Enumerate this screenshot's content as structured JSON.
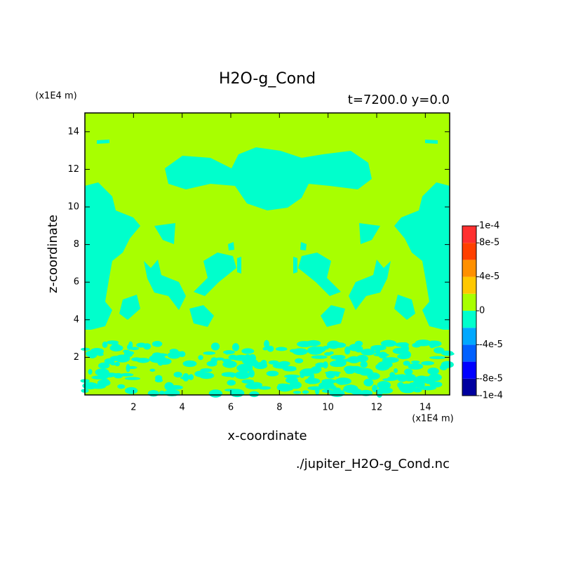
{
  "chart_data": {
    "type": "contour",
    "title": "H2O-g_Cond",
    "subtitle": "t=7200.0 y=0.0",
    "x_label": "x-coordinate",
    "y_label": "z-coordinate",
    "x_unit": "(x1E4 m)",
    "y_unit": "(x1E4 m)",
    "file_label": "./jupiter_H2O-g_Cond.nc",
    "xlim": [
      0,
      15
    ],
    "ylim": [
      0,
      15
    ],
    "xticks": [
      2,
      4,
      6,
      8,
      10,
      12,
      14
    ],
    "yticks": [
      2,
      4,
      6,
      8,
      10,
      12,
      14
    ],
    "colorbar": {
      "levels": [
        -0.0001,
        -8e-05,
        -6e-05,
        -4e-05,
        -2e-05,
        0,
        2e-05,
        4e-05,
        6e-05,
        8e-05,
        0.0001
      ],
      "colors": [
        "#0000a0",
        "#0000ff",
        "#0060ff",
        "#00a8ff",
        "#00ffcc",
        "#a8ff00",
        "#ffc800",
        "#ff9000",
        "#ff4000",
        "#ff3030"
      ],
      "ticks": [
        {
          "value": 0.0001,
          "label": "1e-4"
        },
        {
          "value": 8e-05,
          "label": "8e-5"
        },
        {
          "value": 4e-05,
          "label": "4e-5"
        },
        {
          "value": 0,
          "label": "0"
        },
        {
          "value": -4e-05,
          "label": "-4e-5"
        },
        {
          "value": -8e-05,
          "label": "-8e-5"
        },
        {
          "value": -0.0001,
          "label": "-1e-4"
        }
      ]
    }
  }
}
